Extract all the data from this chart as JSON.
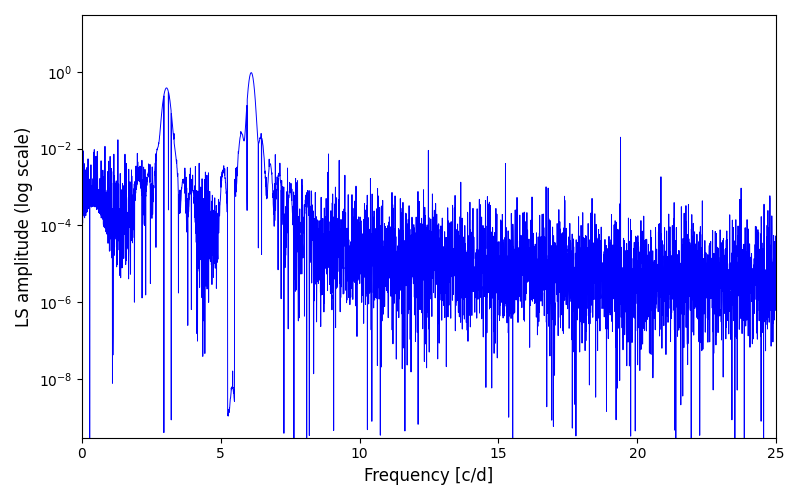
{
  "line_color": "#0000ff",
  "line_width": 0.7,
  "xlabel": "Frequency [c/d]",
  "ylabel": "LS amplitude (log scale)",
  "xlim": [
    0,
    25
  ],
  "ylim": [
    3e-10,
    30.0
  ],
  "background_color": "#ffffff",
  "figsize": [
    8.0,
    5.0
  ],
  "dpi": 100,
  "peak1_freq": 3.05,
  "peak1_amp": 0.38,
  "peak2_freq": 6.1,
  "peak2_amp": 0.95,
  "num_points": 5000,
  "yticks": [
    1e-08,
    1e-06,
    0.0001,
    0.01,
    1.0
  ],
  "xticks": [
    0,
    5,
    10,
    15,
    20,
    25
  ],
  "xlabel_fontsize": 12,
  "ylabel_fontsize": 12
}
